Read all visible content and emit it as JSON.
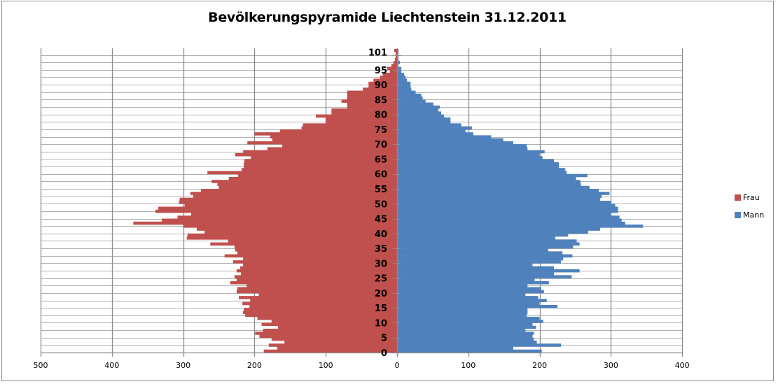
{
  "chart_data": {
    "type": "bar",
    "orientation": "horizontal",
    "title": "Bevölkerungspyramide Liechtenstein 31.12.2011",
    "xlabel": "",
    "ylabel": "",
    "x_tick_labels": [
      "500",
      "400",
      "300",
      "200",
      "100",
      "0",
      "100",
      "200",
      "300",
      "400"
    ],
    "x_ticks": [
      -500,
      -400,
      -300,
      -200,
      -100,
      0,
      100,
      200,
      300,
      400
    ],
    "xlim": [
      -500,
      400
    ],
    "y_tick_labels": [
      "0",
      "5",
      "10",
      "15",
      "20",
      "25",
      "30",
      "35",
      "40",
      "45",
      "50",
      "55",
      "60",
      "65",
      "70",
      "75",
      "80",
      "85",
      "90",
      "95",
      "101"
    ],
    "ylim": [
      0,
      101
    ],
    "grid": true,
    "legend_position": "right",
    "categories": [
      0,
      1,
      2,
      3,
      4,
      5,
      6,
      7,
      8,
      9,
      10,
      11,
      12,
      13,
      14,
      15,
      16,
      17,
      18,
      19,
      20,
      21,
      22,
      23,
      24,
      25,
      26,
      27,
      28,
      29,
      30,
      31,
      32,
      33,
      34,
      35,
      36,
      37,
      38,
      39,
      40,
      41,
      42,
      43,
      44,
      45,
      46,
      47,
      48,
      49,
      50,
      51,
      52,
      53,
      54,
      55,
      56,
      57,
      58,
      59,
      60,
      61,
      62,
      63,
      64,
      65,
      66,
      67,
      68,
      69,
      70,
      71,
      72,
      73,
      74,
      75,
      76,
      77,
      78,
      79,
      80,
      81,
      82,
      83,
      84,
      85,
      86,
      87,
      88,
      89,
      90,
      91,
      92,
      93,
      94,
      95,
      96,
      97,
      98,
      99,
      100,
      101
    ],
    "series": [
      {
        "name": "Frau",
        "color": "#c0504d",
        "values": [
          187,
          168,
          180,
          158,
          176,
          193,
          199,
          188,
          167,
          190,
          176,
          196,
          213,
          216,
          215,
          207,
          217,
          206,
          222,
          194,
          225,
          224,
          211,
          234,
          225,
          228,
          219,
          225,
          220,
          216,
          230,
          216,
          242,
          224,
          227,
          228,
          262,
          237,
          295,
          294,
          270,
          281,
          300,
          370,
          330,
          308,
          289,
          339,
          335,
          298,
          306,
          305,
          286,
          290,
          275,
          250,
          252,
          260,
          236,
          223,
          266,
          218,
          215,
          215,
          214,
          205,
          227,
          216,
          182,
          161,
          210,
          175,
          178,
          200,
          164,
          134,
          132,
          100,
          100,
          114,
          92,
          92,
          70,
          70,
          78,
          70,
          70,
          70,
          48,
          40,
          40,
          33,
          24,
          20,
          10,
          14,
          8,
          5,
          3,
          2,
          2,
          4
        ]
      },
      {
        "name": "Mann",
        "color": "#4f81bd",
        "values": [
          203,
          163,
          230,
          196,
          192,
          190,
          192,
          180,
          195,
          190,
          205,
          200,
          182,
          183,
          183,
          225,
          200,
          210,
          198,
          180,
          206,
          202,
          183,
          213,
          193,
          245,
          220,
          256,
          220,
          190,
          230,
          233,
          246,
          232,
          212,
          247,
          256,
          252,
          222,
          240,
          268,
          285,
          345,
          320,
          315,
          312,
          300,
          310,
          310,
          306,
          300,
          285,
          287,
          298,
          283,
          270,
          258,
          257,
          251,
          267,
          238,
          236,
          227,
          227,
          220,
          204,
          200,
          207,
          183,
          182,
          163,
          149,
          132,
          107,
          96,
          105,
          90,
          75,
          75,
          66,
          62,
          58,
          60,
          51,
          40,
          36,
          34,
          26,
          20,
          19,
          19,
          14,
          12,
          10,
          6,
          6,
          2,
          4,
          2,
          2,
          2,
          2
        ]
      }
    ]
  },
  "legend": {
    "items": [
      {
        "label": "Frau",
        "color": "#c0504d"
      },
      {
        "label": "Mann",
        "color": "#4f81bd"
      }
    ]
  }
}
